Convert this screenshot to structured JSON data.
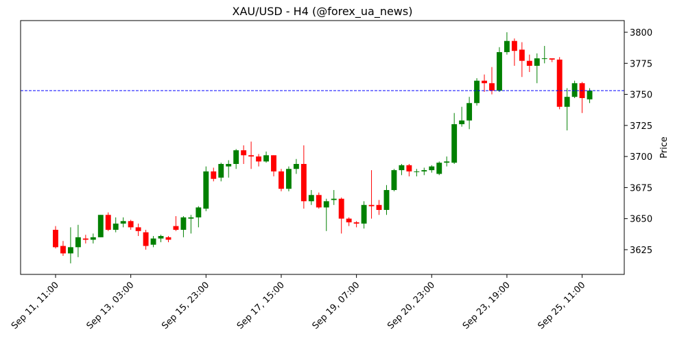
{
  "chart_data": {
    "type": "candlestick",
    "title": "XAU/USD - H4 (@forex_ua_news)",
    "ylabel": "Price",
    "up_color": "green",
    "down_color": "red",
    "hline": 3753,
    "hline_color": "blue",
    "xlim": [
      -4.65,
      75.6
    ],
    "ylim": [
      3605.1,
      3809.4
    ],
    "xticks": [
      {
        "value": 0,
        "label": "Sep 11, 11:00"
      },
      {
        "value": 10,
        "label": "Sep 13, 03:00"
      },
      {
        "value": 20,
        "label": "Sep 15, 23:00"
      },
      {
        "value": 30,
        "label": "Sep 17, 15:00"
      },
      {
        "value": 40,
        "label": "Sep 19, 07:00"
      },
      {
        "value": 50,
        "label": "Sep 20, 23:00"
      },
      {
        "value": 60,
        "label": "Sep 23, 19:00"
      },
      {
        "value": 70,
        "label": "Sep 25, 11:00"
      }
    ],
    "yticks": [
      3625,
      3650,
      3675,
      3700,
      3725,
      3750,
      3775,
      3800
    ],
    "open": [
      3641,
      3628,
      3622,
      3627,
      3634,
      3633,
      3635,
      3653,
      3641,
      3646,
      3648,
      3643,
      3639,
      3629,
      3634,
      3635,
      3644,
      3641,
      3650,
      3651,
      3658,
      3688,
      3683,
      3692,
      3694,
      3705,
      3701,
      3700,
      3696,
      3701,
      3688,
      3674,
      3690,
      3694,
      3664,
      3669,
      3659,
      3665,
      3666,
      3650,
      3647,
      3646,
      3661,
      3661,
      3657,
      3673,
      3689,
      3693,
      3688,
      3688,
      3689,
      3686,
      3695,
      3695,
      3726,
      3729,
      3743,
      3761,
      3759,
      3753,
      3784,
      3793,
      3786,
      3777,
      3773,
      3779,
      3779,
      3778,
      3740,
      3748,
      3759,
      3746
    ],
    "high": [
      3644,
      3632,
      3643,
      3645,
      3637,
      3638,
      3653,
      3655,
      3651,
      3651,
      3649,
      3646,
      3641,
      3636,
      3637,
      3636,
      3652,
      3652,
      3653,
      3660,
      3692,
      3691,
      3695,
      3697,
      3706,
      3709,
      3712,
      3702,
      3704,
      3701,
      3690,
      3692,
      3698,
      3709,
      3673,
      3671,
      3666,
      3673,
      3667,
      3651,
      3648,
      3664,
      3689,
      3665,
      3677,
      3690,
      3694,
      3694,
      3690,
      3691,
      3693,
      3696,
      3700,
      3735,
      3740,
      3748,
      3763,
      3766,
      3772,
      3788,
      3800,
      3795,
      3792,
      3782,
      3783,
      3789,
      3779,
      3780,
      3755,
      3761,
      3760,
      3755
    ],
    "low": [
      3626,
      3620,
      3614,
      3619,
      3630,
      3630,
      3635,
      3640,
      3639,
      3643,
      3641,
      3636,
      3625,
      3627,
      3631,
      3631,
      3640,
      3635,
      3638,
      3643,
      3656,
      3680,
      3680,
      3683,
      3690,
      3694,
      3690,
      3692,
      3695,
      3684,
      3672,
      3672,
      3686,
      3658,
      3661,
      3658,
      3640,
      3661,
      3638,
      3644,
      3643,
      3642,
      3650,
      3653,
      3653,
      3672,
      3685,
      3684,
      3684,
      3685,
      3687,
      3685,
      3692,
      3694,
      3724,
      3722,
      3741,
      3752,
      3750,
      3752,
      3782,
      3773,
      3764,
      3768,
      3759,
      3775,
      3776,
      3738,
      3721,
      3747,
      3735,
      3743
    ],
    "close": [
      3627,
      3622,
      3627,
      3635,
      3633,
      3635,
      3653,
      3641,
      3646,
      3648,
      3643,
      3640,
      3628,
      3634,
      3636,
      3633,
      3641,
      3651,
      3651,
      3659,
      3688,
      3682,
      3694,
      3694,
      3705,
      3701,
      3700,
      3696,
      3701,
      3688,
      3674,
      3690,
      3694,
      3664,
      3669,
      3659,
      3664,
      3666,
      3650,
      3647,
      3646,
      3661,
      3660,
      3657,
      3673,
      3689,
      3693,
      3688,
      3688,
      3689,
      3692,
      3695,
      3696,
      3726,
      3729,
      3743,
      3761,
      3759,
      3753,
      3784,
      3793,
      3785,
      3777,
      3773,
      3779,
      3779,
      3778,
      3740,
      3748,
      3759,
      3747,
      3753
    ]
  }
}
